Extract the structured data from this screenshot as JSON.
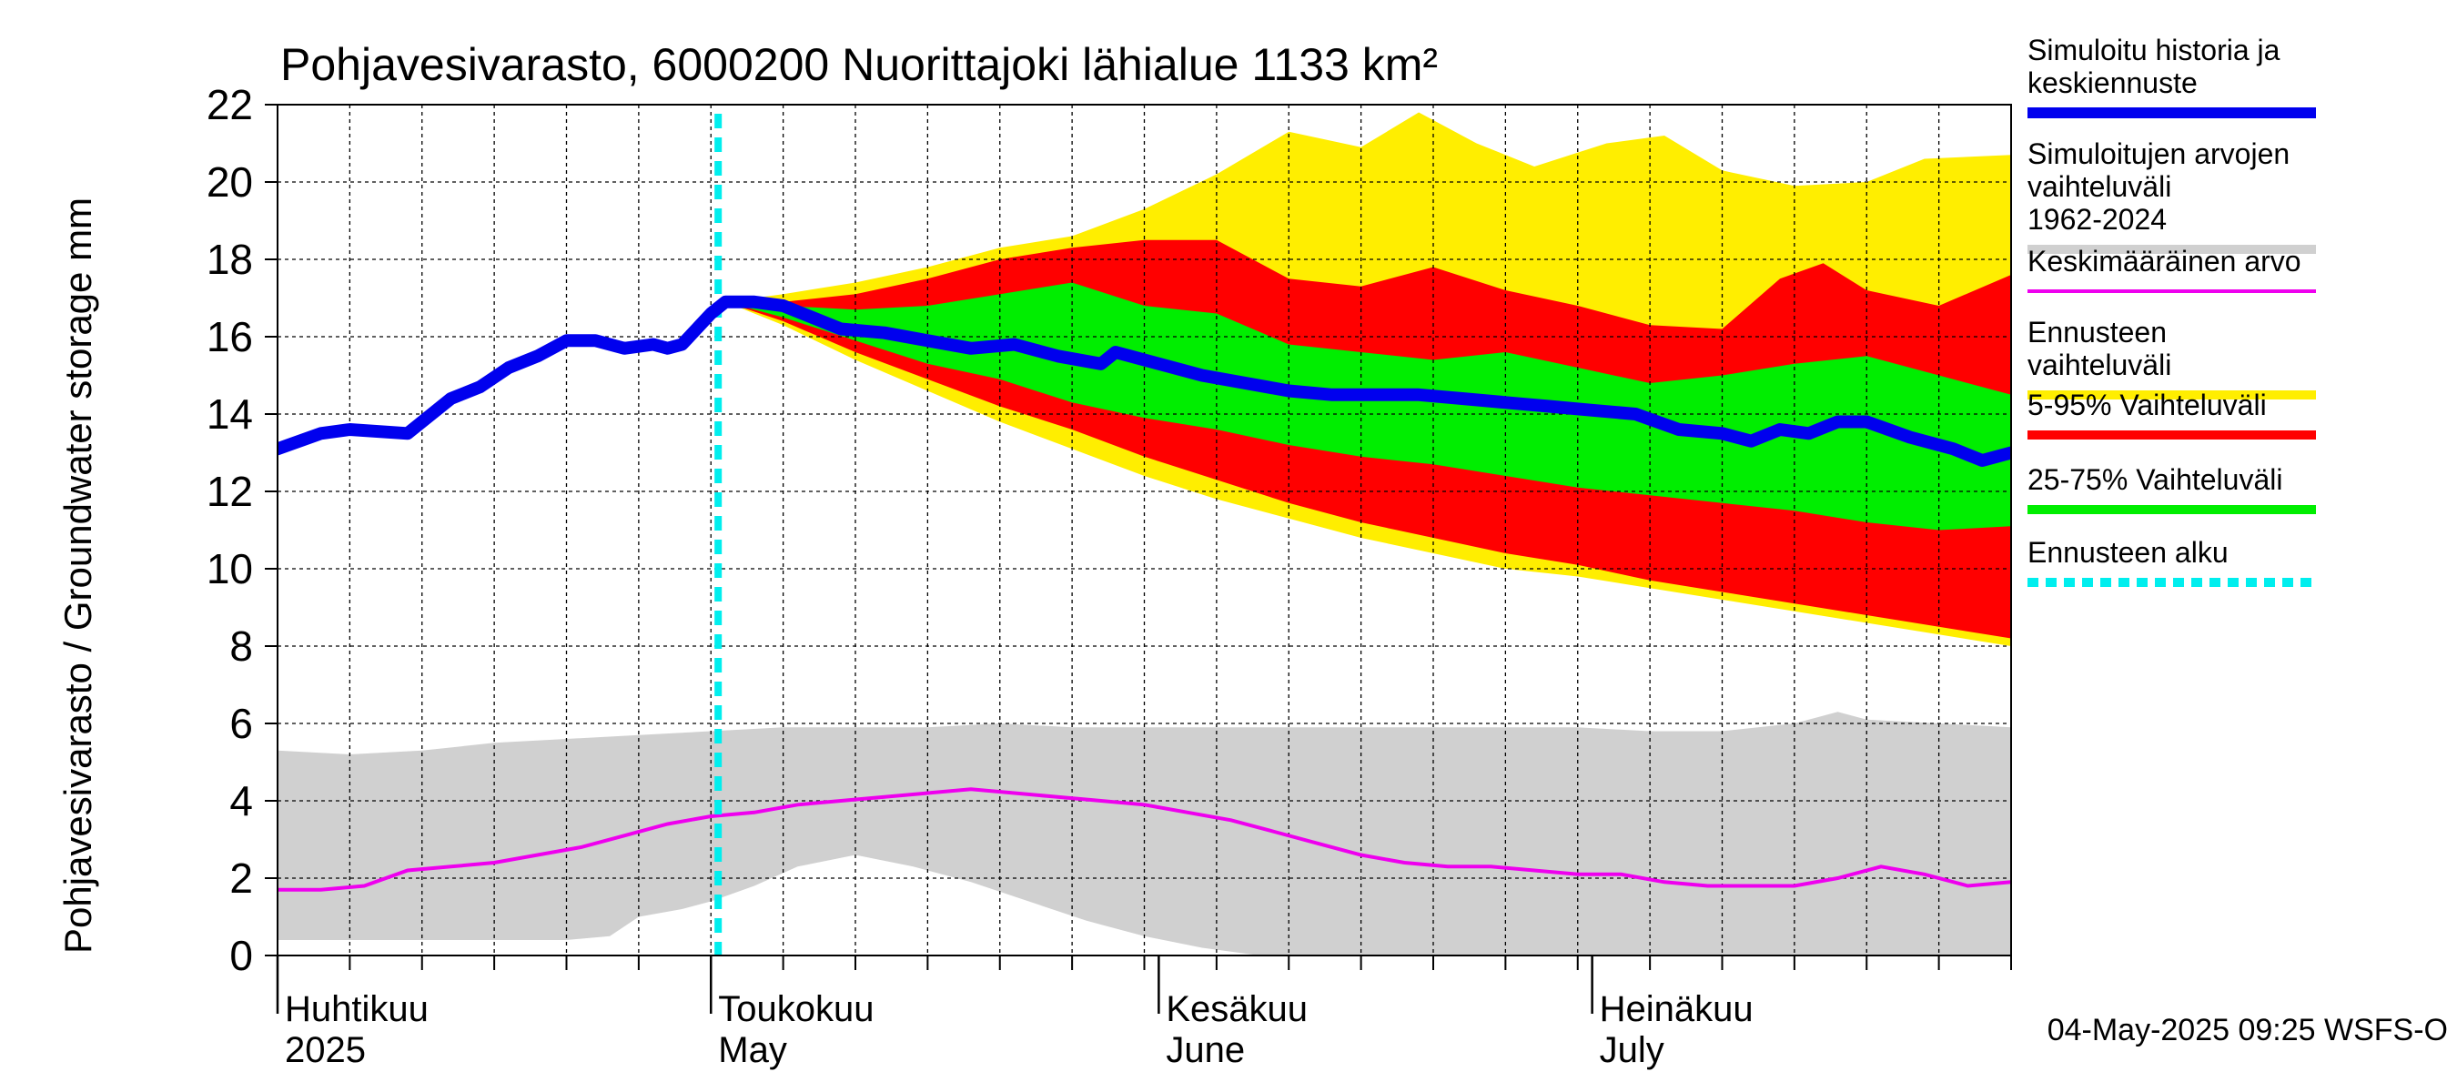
{
  "chart_data": {
    "type": "area",
    "title": "Pohjavesivarasto, 6000200 Nuorittajoki lähialue 1133 km²",
    "ylabel": "Pohjavesivarasto / Groundwater storage   mm",
    "ylim": [
      0,
      22
    ],
    "yticks": [
      0,
      2,
      4,
      6,
      8,
      10,
      12,
      14,
      16,
      18,
      20,
      22
    ],
    "xlim": [
      0,
      120
    ],
    "forecast_start": 30.5,
    "x_month_labels": [
      {
        "x": 0,
        "fi": "Huhtikuu",
        "en": "2025"
      },
      {
        "x": 30,
        "fi": "Toukokuu",
        "en": "May"
      },
      {
        "x": 61,
        "fi": "Kesäkuu",
        "en": "June"
      },
      {
        "x": 91,
        "fi": "Heinäkuu",
        "en": "July"
      }
    ],
    "legend": [
      {
        "key": "history",
        "label": "Simuloitu historia ja keskiennuste",
        "color": "#0000ee"
      },
      {
        "key": "range",
        "label": "Simuloitujen arvojen vaihteluväli 1962-2024",
        "color": "#d0d0d0"
      },
      {
        "key": "mean",
        "label": "Keskimääräinen arvo",
        "color": "#ee00ee"
      },
      {
        "key": "forecast_range",
        "label": "Ennusteen vaihteluväli",
        "color": "#ffee00"
      },
      {
        "key": "p5_95",
        "label": "5-95% Vaihteluväli",
        "color": "#ff0000"
      },
      {
        "key": "p25_75",
        "label": "25-75% Vaihteluväli",
        "color": "#00ee00"
      },
      {
        "key": "forecast_start",
        "label": "Ennusteen alku",
        "color": "#00eeee"
      }
    ],
    "timestamp": "04-May-2025 09:25 WSFS-O",
    "series": {
      "history": [
        [
          0,
          13.1
        ],
        [
          3,
          13.5
        ],
        [
          5,
          13.6
        ],
        [
          9,
          13.5
        ],
        [
          12,
          14.4
        ],
        [
          14,
          14.7
        ],
        [
          16,
          15.2
        ],
        [
          18,
          15.5
        ],
        [
          20,
          15.9
        ],
        [
          22,
          15.9
        ],
        [
          24,
          15.7
        ],
        [
          26,
          15.8
        ],
        [
          27,
          15.7
        ],
        [
          28,
          15.8
        ],
        [
          30,
          16.6
        ],
        [
          31,
          16.9
        ],
        [
          33,
          16.9
        ],
        [
          35,
          16.8
        ],
        [
          37,
          16.5
        ],
        [
          39,
          16.2
        ],
        [
          42,
          16.1
        ],
        [
          45,
          15.9
        ],
        [
          48,
          15.7
        ],
        [
          51,
          15.8
        ],
        [
          54,
          15.5
        ],
        [
          57,
          15.3
        ],
        [
          58,
          15.6
        ],
        [
          61,
          15.3
        ],
        [
          64,
          15.0
        ],
        [
          67,
          14.8
        ],
        [
          70,
          14.6
        ],
        [
          73,
          14.5
        ],
        [
          76,
          14.5
        ],
        [
          79,
          14.5
        ],
        [
          82,
          14.4
        ],
        [
          85,
          14.3
        ],
        [
          88,
          14.2
        ],
        [
          91,
          14.1
        ],
        [
          94,
          14.0
        ],
        [
          97,
          13.6
        ],
        [
          100,
          13.5
        ],
        [
          102,
          13.3
        ],
        [
          104,
          13.6
        ],
        [
          106,
          13.5
        ],
        [
          108,
          13.8
        ],
        [
          110,
          13.8
        ],
        [
          113,
          13.4
        ],
        [
          116,
          13.1
        ],
        [
          118,
          12.8
        ],
        [
          120,
          13.0
        ]
      ],
      "mean": [
        [
          0,
          1.7
        ],
        [
          3,
          1.7
        ],
        [
          6,
          1.8
        ],
        [
          9,
          2.2
        ],
        [
          12,
          2.3
        ],
        [
          15,
          2.4
        ],
        [
          18,
          2.6
        ],
        [
          21,
          2.8
        ],
        [
          24,
          3.1
        ],
        [
          27,
          3.4
        ],
        [
          30,
          3.6
        ],
        [
          33,
          3.7
        ],
        [
          36,
          3.9
        ],
        [
          39,
          4.0
        ],
        [
          42,
          4.1
        ],
        [
          45,
          4.2
        ],
        [
          48,
          4.3
        ],
        [
          51,
          4.2
        ],
        [
          54,
          4.1
        ],
        [
          57,
          4.0
        ],
        [
          60,
          3.9
        ],
        [
          63,
          3.7
        ],
        [
          66,
          3.5
        ],
        [
          69,
          3.2
        ],
        [
          72,
          2.9
        ],
        [
          75,
          2.6
        ],
        [
          78,
          2.4
        ],
        [
          81,
          2.3
        ],
        [
          84,
          2.3
        ],
        [
          87,
          2.2
        ],
        [
          90,
          2.1
        ],
        [
          93,
          2.1
        ],
        [
          96,
          1.9
        ],
        [
          99,
          1.8
        ],
        [
          102,
          1.8
        ],
        [
          105,
          1.8
        ],
        [
          108,
          2.0
        ],
        [
          111,
          2.3
        ],
        [
          114,
          2.1
        ],
        [
          117,
          1.8
        ],
        [
          120,
          1.9
        ]
      ],
      "range_upper": [
        [
          0,
          5.3
        ],
        [
          5,
          5.2
        ],
        [
          10,
          5.3
        ],
        [
          15,
          5.5
        ],
        [
          20,
          5.6
        ],
        [
          25,
          5.7
        ],
        [
          30,
          5.8
        ],
        [
          35,
          5.9
        ],
        [
          40,
          5.9
        ],
        [
          45,
          5.9
        ],
        [
          50,
          6.0
        ],
        [
          55,
          5.9
        ],
        [
          60,
          5.9
        ],
        [
          65,
          5.9
        ],
        [
          70,
          5.9
        ],
        [
          75,
          5.9
        ],
        [
          80,
          5.9
        ],
        [
          85,
          5.9
        ],
        [
          90,
          5.9
        ],
        [
          95,
          5.8
        ],
        [
          100,
          5.8
        ],
        [
          105,
          6.0
        ],
        [
          108,
          6.3
        ],
        [
          110,
          6.1
        ],
        [
          115,
          6.0
        ],
        [
          120,
          5.9
        ]
      ],
      "range_lower": [
        [
          0,
          0.4
        ],
        [
          5,
          0.4
        ],
        [
          10,
          0.4
        ],
        [
          15,
          0.4
        ],
        [
          20,
          0.4
        ],
        [
          23,
          0.5
        ],
        [
          25,
          1.0
        ],
        [
          28,
          1.2
        ],
        [
          30,
          1.4
        ],
        [
          33,
          1.8
        ],
        [
          36,
          2.3
        ],
        [
          40,
          2.6
        ],
        [
          44,
          2.3
        ],
        [
          48,
          1.9
        ],
        [
          52,
          1.4
        ],
        [
          56,
          0.9
        ],
        [
          60,
          0.5
        ],
        [
          64,
          0.2
        ],
        [
          68,
          0.0
        ],
        [
          120,
          0.0
        ]
      ],
      "forecast_upper": [
        [
          31,
          16.9
        ],
        [
          35,
          17.1
        ],
        [
          40,
          17.4
        ],
        [
          45,
          17.8
        ],
        [
          50,
          18.3
        ],
        [
          55,
          18.6
        ],
        [
          60,
          19.3
        ],
        [
          65,
          20.2
        ],
        [
          70,
          21.3
        ],
        [
          75,
          20.9
        ],
        [
          79,
          21.8
        ],
        [
          83,
          21.0
        ],
        [
          87,
          20.4
        ],
        [
          92,
          21.0
        ],
        [
          96,
          21.2
        ],
        [
          100,
          20.3
        ],
        [
          105,
          19.9
        ],
        [
          110,
          20.0
        ],
        [
          114,
          20.6
        ],
        [
          120,
          20.7
        ]
      ],
      "forecast_lower": [
        [
          31,
          16.9
        ],
        [
          35,
          16.3
        ],
        [
          40,
          15.4
        ],
        [
          45,
          14.6
        ],
        [
          50,
          13.8
        ],
        [
          55,
          13.1
        ],
        [
          60,
          12.4
        ],
        [
          65,
          11.8
        ],
        [
          70,
          11.3
        ],
        [
          75,
          10.8
        ],
        [
          80,
          10.4
        ],
        [
          85,
          10.0
        ],
        [
          90,
          9.8
        ],
        [
          95,
          9.5
        ],
        [
          100,
          9.2
        ],
        [
          105,
          8.9
        ],
        [
          110,
          8.6
        ],
        [
          115,
          8.3
        ],
        [
          120,
          8.0
        ]
      ],
      "p95": [
        [
          31,
          16.9
        ],
        [
          35,
          16.9
        ],
        [
          40,
          17.1
        ],
        [
          45,
          17.5
        ],
        [
          50,
          18.0
        ],
        [
          55,
          18.3
        ],
        [
          60,
          18.5
        ],
        [
          65,
          18.5
        ],
        [
          70,
          17.5
        ],
        [
          75,
          17.3
        ],
        [
          80,
          17.8
        ],
        [
          85,
          17.2
        ],
        [
          90,
          16.8
        ],
        [
          95,
          16.3
        ],
        [
          100,
          16.2
        ],
        [
          104,
          17.5
        ],
        [
          107,
          17.9
        ],
        [
          110,
          17.2
        ],
        [
          115,
          16.8
        ],
        [
          120,
          17.6
        ]
      ],
      "p5": [
        [
          31,
          16.9
        ],
        [
          35,
          16.4
        ],
        [
          40,
          15.6
        ],
        [
          45,
          14.9
        ],
        [
          50,
          14.2
        ],
        [
          55,
          13.6
        ],
        [
          60,
          12.9
        ],
        [
          65,
          12.3
        ],
        [
          70,
          11.7
        ],
        [
          75,
          11.2
        ],
        [
          80,
          10.8
        ],
        [
          85,
          10.4
        ],
        [
          90,
          10.1
        ],
        [
          95,
          9.7
        ],
        [
          100,
          9.4
        ],
        [
          105,
          9.1
        ],
        [
          110,
          8.8
        ],
        [
          115,
          8.5
        ],
        [
          120,
          8.2
        ]
      ],
      "p75": [
        [
          31,
          16.9
        ],
        [
          35,
          16.8
        ],
        [
          40,
          16.7
        ],
        [
          45,
          16.8
        ],
        [
          50,
          17.1
        ],
        [
          55,
          17.4
        ],
        [
          60,
          16.8
        ],
        [
          65,
          16.6
        ],
        [
          70,
          15.8
        ],
        [
          75,
          15.6
        ],
        [
          80,
          15.4
        ],
        [
          85,
          15.6
        ],
        [
          90,
          15.2
        ],
        [
          95,
          14.8
        ],
        [
          100,
          15.0
        ],
        [
          105,
          15.3
        ],
        [
          110,
          15.5
        ],
        [
          115,
          15.0
        ],
        [
          120,
          14.5
        ]
      ],
      "p25": [
        [
          31,
          16.9
        ],
        [
          35,
          16.5
        ],
        [
          40,
          15.9
        ],
        [
          45,
          15.3
        ],
        [
          50,
          14.9
        ],
        [
          55,
          14.3
        ],
        [
          60,
          13.9
        ],
        [
          65,
          13.6
        ],
        [
          70,
          13.2
        ],
        [
          75,
          12.9
        ],
        [
          80,
          12.7
        ],
        [
          85,
          12.4
        ],
        [
          90,
          12.1
        ],
        [
          95,
          11.9
        ],
        [
          100,
          11.7
        ],
        [
          105,
          11.5
        ],
        [
          110,
          11.2
        ],
        [
          115,
          11.0
        ],
        [
          120,
          11.1
        ]
      ]
    }
  }
}
